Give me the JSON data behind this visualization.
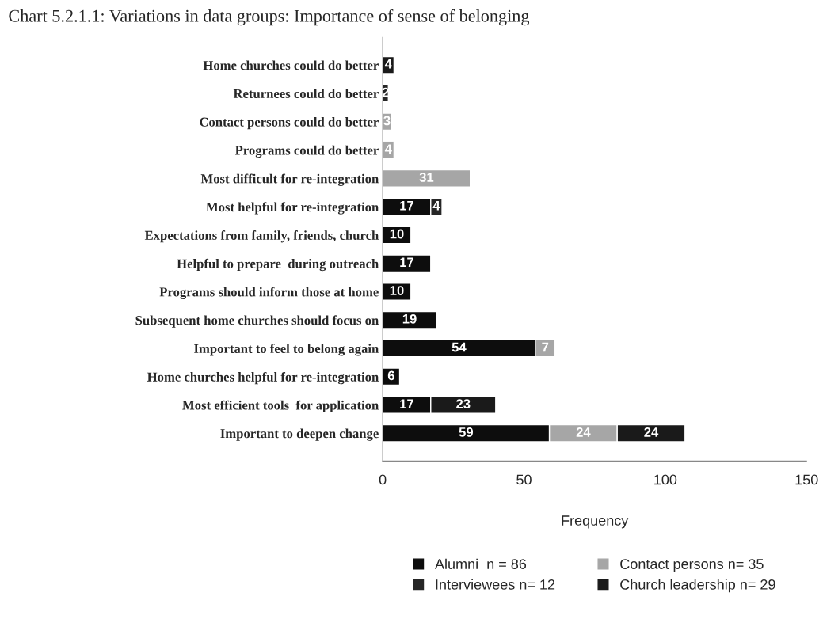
{
  "chart_data": {
    "type": "bar",
    "orientation": "horizontal",
    "stacked": true,
    "title": "Chart 5.2.1.1: Variations in data groups: Importance of sense of belonging",
    "xlabel": "Frequency",
    "categories": [
      "Home churches could do better",
      "Returnees could do better",
      "Contact persons could do better",
      "Programs could do better",
      "Most difficult for re-integration",
      "Most helpful for re-integration",
      "Expectations from family, friends, church",
      "Helpful to prepare  during outreach",
      "Programs should inform those at home",
      "Subsequent home churches should focus on",
      "Important to feel to belong again",
      "Home churches helpful for re-integration",
      "Most efficient tools  for application",
      "Important to deepen change"
    ],
    "series": [
      {
        "name": "Alumni  n = 86",
        "color": "#0d0d0d",
        "values": [
          null,
          null,
          null,
          null,
          null,
          17,
          10,
          17,
          10,
          19,
          54,
          6,
          17,
          59
        ]
      },
      {
        "name": "Interviewees n= 12",
        "color": "#262626",
        "values": [
          null,
          2,
          null,
          null,
          null,
          4,
          null,
          null,
          null,
          null,
          null,
          null,
          null,
          null
        ]
      },
      {
        "name": "Contact persons n= 35",
        "color": "#a6a6a6",
        "values": [
          null,
          null,
          3,
          4,
          31,
          null,
          null,
          null,
          null,
          null,
          7,
          null,
          null,
          24
        ]
      },
      {
        "name": "Church leadership n= 29",
        "color": "#1a1a1a",
        "values": [
          4,
          null,
          null,
          null,
          null,
          null,
          null,
          null,
          null,
          null,
          null,
          null,
          23,
          24
        ]
      }
    ],
    "xlim": [
      0,
      150
    ],
    "xticks": [
      0,
      50,
      100,
      150
    ],
    "data_labels": true,
    "grid": false,
    "legend": "bottom"
  }
}
